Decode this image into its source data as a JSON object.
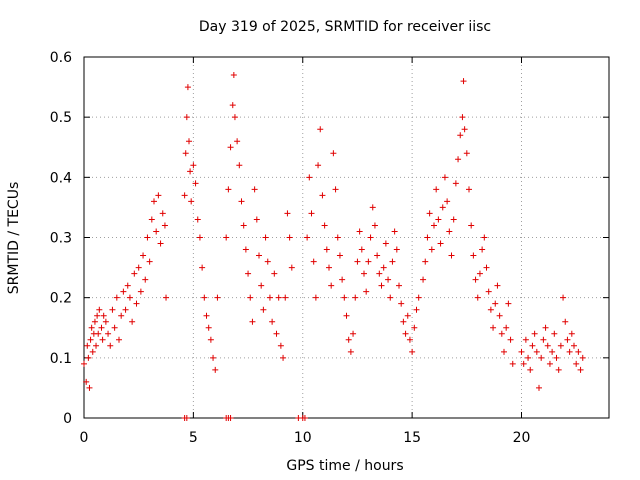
{
  "chart_data": {
    "type": "scatter",
    "title": "Day 319 of 2025, SRMTID for receiver iisc",
    "xlabel": "GPS time / hours",
    "ylabel": "SRMTID / TECUs",
    "xlim": [
      0,
      24
    ],
    "ylim": [
      0,
      0.6
    ],
    "grid": true,
    "marker": "+",
    "color": "#e00000",
    "xticks": [
      0,
      5,
      10,
      15,
      20
    ],
    "xtick_labels": [
      "0",
      "5",
      "10",
      "15",
      "20"
    ],
    "yticks": [
      0,
      0.1,
      0.2,
      0.3,
      0.4,
      0.5,
      0.6
    ],
    "ytick_labels": [
      "0",
      "0.1",
      "0.2",
      "0.3",
      "0.4",
      "0.5",
      "0.6"
    ],
    "series": [
      {
        "name": "SRMTID",
        "points": [
          [
            0.0,
            0.09
          ],
          [
            0.1,
            0.06
          ],
          [
            0.15,
            0.12
          ],
          [
            0.2,
            0.1
          ],
          [
            0.25,
            0.05
          ],
          [
            0.3,
            0.13
          ],
          [
            0.35,
            0.15
          ],
          [
            0.4,
            0.11
          ],
          [
            0.45,
            0.14
          ],
          [
            0.5,
            0.16
          ],
          [
            0.55,
            0.12
          ],
          [
            0.6,
            0.17
          ],
          [
            0.65,
            0.14
          ],
          [
            0.7,
            0.18
          ],
          [
            0.8,
            0.15
          ],
          [
            0.85,
            0.13
          ],
          [
            0.9,
            0.17
          ],
          [
            1.0,
            0.16
          ],
          [
            1.1,
            0.14
          ],
          [
            1.2,
            0.12
          ],
          [
            1.3,
            0.18
          ],
          [
            1.4,
            0.15
          ],
          [
            1.5,
            0.2
          ],
          [
            1.6,
            0.13
          ],
          [
            1.7,
            0.17
          ],
          [
            1.8,
            0.21
          ],
          [
            1.9,
            0.18
          ],
          [
            2.0,
            0.22
          ],
          [
            2.1,
            0.2
          ],
          [
            2.2,
            0.16
          ],
          [
            2.3,
            0.24
          ],
          [
            2.4,
            0.19
          ],
          [
            2.5,
            0.25
          ],
          [
            2.6,
            0.21
          ],
          [
            2.7,
            0.27
          ],
          [
            2.8,
            0.23
          ],
          [
            2.9,
            0.3
          ],
          [
            3.0,
            0.26
          ],
          [
            3.1,
            0.33
          ],
          [
            3.2,
            0.36
          ],
          [
            3.3,
            0.31
          ],
          [
            3.4,
            0.37
          ],
          [
            3.5,
            0.29
          ],
          [
            3.6,
            0.34
          ],
          [
            3.7,
            0.32
          ],
          [
            3.75,
            0.2
          ],
          [
            4.6,
            0.37
          ],
          [
            4.65,
            0.44
          ],
          [
            4.7,
            0.5
          ],
          [
            4.75,
            0.55
          ],
          [
            4.8,
            0.46
          ],
          [
            4.85,
            0.41
          ],
          [
            4.9,
            0.36
          ],
          [
            5.0,
            0.42
          ],
          [
            5.1,
            0.39
          ],
          [
            5.2,
            0.33
          ],
          [
            5.3,
            0.3
          ],
          [
            5.4,
            0.25
          ],
          [
            5.5,
            0.2
          ],
          [
            5.6,
            0.17
          ],
          [
            5.7,
            0.15
          ],
          [
            5.8,
            0.13
          ],
          [
            5.9,
            0.1
          ],
          [
            6.0,
            0.08
          ],
          [
            6.1,
            0.2
          ],
          [
            6.5,
            0.3
          ],
          [
            6.6,
            0.38
          ],
          [
            6.7,
            0.45
          ],
          [
            6.8,
            0.52
          ],
          [
            6.85,
            0.57
          ],
          [
            6.9,
            0.5
          ],
          [
            7.0,
            0.46
          ],
          [
            7.1,
            0.42
          ],
          [
            7.2,
            0.36
          ],
          [
            7.3,
            0.32
          ],
          [
            7.4,
            0.28
          ],
          [
            7.5,
            0.24
          ],
          [
            7.6,
            0.2
          ],
          [
            7.7,
            0.16
          ],
          [
            7.8,
            0.38
          ],
          [
            7.9,
            0.33
          ],
          [
            8.0,
            0.27
          ],
          [
            8.1,
            0.22
          ],
          [
            8.2,
            0.18
          ],
          [
            8.3,
            0.3
          ],
          [
            8.4,
            0.26
          ],
          [
            8.5,
            0.2
          ],
          [
            8.6,
            0.16
          ],
          [
            8.7,
            0.24
          ],
          [
            8.8,
            0.14
          ],
          [
            8.9,
            0.2
          ],
          [
            9.0,
            0.12
          ],
          [
            9.1,
            0.1
          ],
          [
            9.2,
            0.2
          ],
          [
            9.3,
            0.34
          ],
          [
            9.4,
            0.3
          ],
          [
            9.5,
            0.25
          ],
          [
            10.2,
            0.3
          ],
          [
            10.3,
            0.4
          ],
          [
            10.4,
            0.34
          ],
          [
            10.5,
            0.26
          ],
          [
            10.6,
            0.2
          ],
          [
            10.7,
            0.42
          ],
          [
            10.8,
            0.48
          ],
          [
            10.9,
            0.37
          ],
          [
            11.0,
            0.32
          ],
          [
            11.1,
            0.28
          ],
          [
            11.2,
            0.25
          ],
          [
            11.3,
            0.22
          ],
          [
            11.4,
            0.44
          ],
          [
            11.5,
            0.38
          ],
          [
            11.6,
            0.3
          ],
          [
            11.7,
            0.27
          ],
          [
            11.8,
            0.23
          ],
          [
            11.9,
            0.2
          ],
          [
            12.0,
            0.17
          ],
          [
            12.1,
            0.13
          ],
          [
            12.2,
            0.11
          ],
          [
            12.3,
            0.14
          ],
          [
            12.4,
            0.2
          ],
          [
            12.5,
            0.26
          ],
          [
            12.6,
            0.31
          ],
          [
            12.7,
            0.28
          ],
          [
            12.8,
            0.24
          ],
          [
            12.9,
            0.21
          ],
          [
            13.0,
            0.26
          ],
          [
            13.1,
            0.3
          ],
          [
            13.2,
            0.35
          ],
          [
            13.3,
            0.32
          ],
          [
            13.4,
            0.27
          ],
          [
            13.5,
            0.24
          ],
          [
            13.6,
            0.22
          ],
          [
            13.7,
            0.25
          ],
          [
            13.8,
            0.29
          ],
          [
            13.9,
            0.23
          ],
          [
            14.0,
            0.2
          ],
          [
            14.1,
            0.26
          ],
          [
            14.2,
            0.31
          ],
          [
            14.3,
            0.28
          ],
          [
            14.4,
            0.22
          ],
          [
            14.5,
            0.19
          ],
          [
            14.6,
            0.16
          ],
          [
            14.7,
            0.14
          ],
          [
            14.8,
            0.17
          ],
          [
            14.9,
            0.13
          ],
          [
            15.0,
            0.11
          ],
          [
            15.1,
            0.15
          ],
          [
            15.2,
            0.18
          ],
          [
            15.3,
            0.2
          ],
          [
            15.5,
            0.23
          ],
          [
            15.6,
            0.26
          ],
          [
            15.7,
            0.3
          ],
          [
            15.8,
            0.34
          ],
          [
            15.9,
            0.28
          ],
          [
            16.0,
            0.32
          ],
          [
            16.1,
            0.38
          ],
          [
            16.2,
            0.33
          ],
          [
            16.3,
            0.29
          ],
          [
            16.4,
            0.35
          ],
          [
            16.5,
            0.4
          ],
          [
            16.6,
            0.36
          ],
          [
            16.7,
            0.31
          ],
          [
            16.8,
            0.27
          ],
          [
            16.9,
            0.33
          ],
          [
            17.0,
            0.39
          ],
          [
            17.1,
            0.43
          ],
          [
            17.2,
            0.47
          ],
          [
            17.3,
            0.5
          ],
          [
            17.35,
            0.56
          ],
          [
            17.4,
            0.48
          ],
          [
            17.5,
            0.44
          ],
          [
            17.6,
            0.38
          ],
          [
            17.7,
            0.32
          ],
          [
            17.8,
            0.27
          ],
          [
            17.9,
            0.23
          ],
          [
            18.0,
            0.2
          ],
          [
            18.1,
            0.24
          ],
          [
            18.2,
            0.28
          ],
          [
            18.3,
            0.3
          ],
          [
            18.4,
            0.25
          ],
          [
            18.5,
            0.21
          ],
          [
            18.6,
            0.18
          ],
          [
            18.7,
            0.15
          ],
          [
            18.8,
            0.19
          ],
          [
            18.9,
            0.22
          ],
          [
            19.0,
            0.17
          ],
          [
            19.1,
            0.14
          ],
          [
            19.2,
            0.11
          ],
          [
            19.3,
            0.15
          ],
          [
            19.4,
            0.19
          ],
          [
            19.5,
            0.13
          ],
          [
            19.6,
            0.09
          ],
          [
            20.0,
            0.11
          ],
          [
            20.1,
            0.09
          ],
          [
            20.2,
            0.13
          ],
          [
            20.3,
            0.1
          ],
          [
            20.4,
            0.08
          ],
          [
            20.5,
            0.12
          ],
          [
            20.6,
            0.14
          ],
          [
            20.7,
            0.11
          ],
          [
            20.8,
            0.05
          ],
          [
            20.9,
            0.1
          ],
          [
            21.0,
            0.13
          ],
          [
            21.1,
            0.15
          ],
          [
            21.2,
            0.12
          ],
          [
            21.3,
            0.09
          ],
          [
            21.4,
            0.11
          ],
          [
            21.5,
            0.14
          ],
          [
            21.6,
            0.1
          ],
          [
            21.7,
            0.08
          ],
          [
            21.8,
            0.12
          ],
          [
            21.9,
            0.2
          ],
          [
            22.0,
            0.16
          ],
          [
            22.1,
            0.13
          ],
          [
            22.2,
            0.11
          ],
          [
            22.3,
            0.14
          ],
          [
            22.4,
            0.12
          ],
          [
            22.5,
            0.09
          ],
          [
            22.6,
            0.11
          ],
          [
            22.7,
            0.08
          ],
          [
            22.8,
            0.1
          ],
          [
            4.6,
            0.0
          ],
          [
            4.7,
            0.0
          ],
          [
            6.5,
            0.0
          ],
          [
            6.6,
            0.0
          ],
          [
            6.7,
            0.0
          ],
          [
            9.8,
            0.0
          ],
          [
            10.0,
            0.0
          ],
          [
            10.1,
            0.0
          ]
        ]
      }
    ]
  }
}
